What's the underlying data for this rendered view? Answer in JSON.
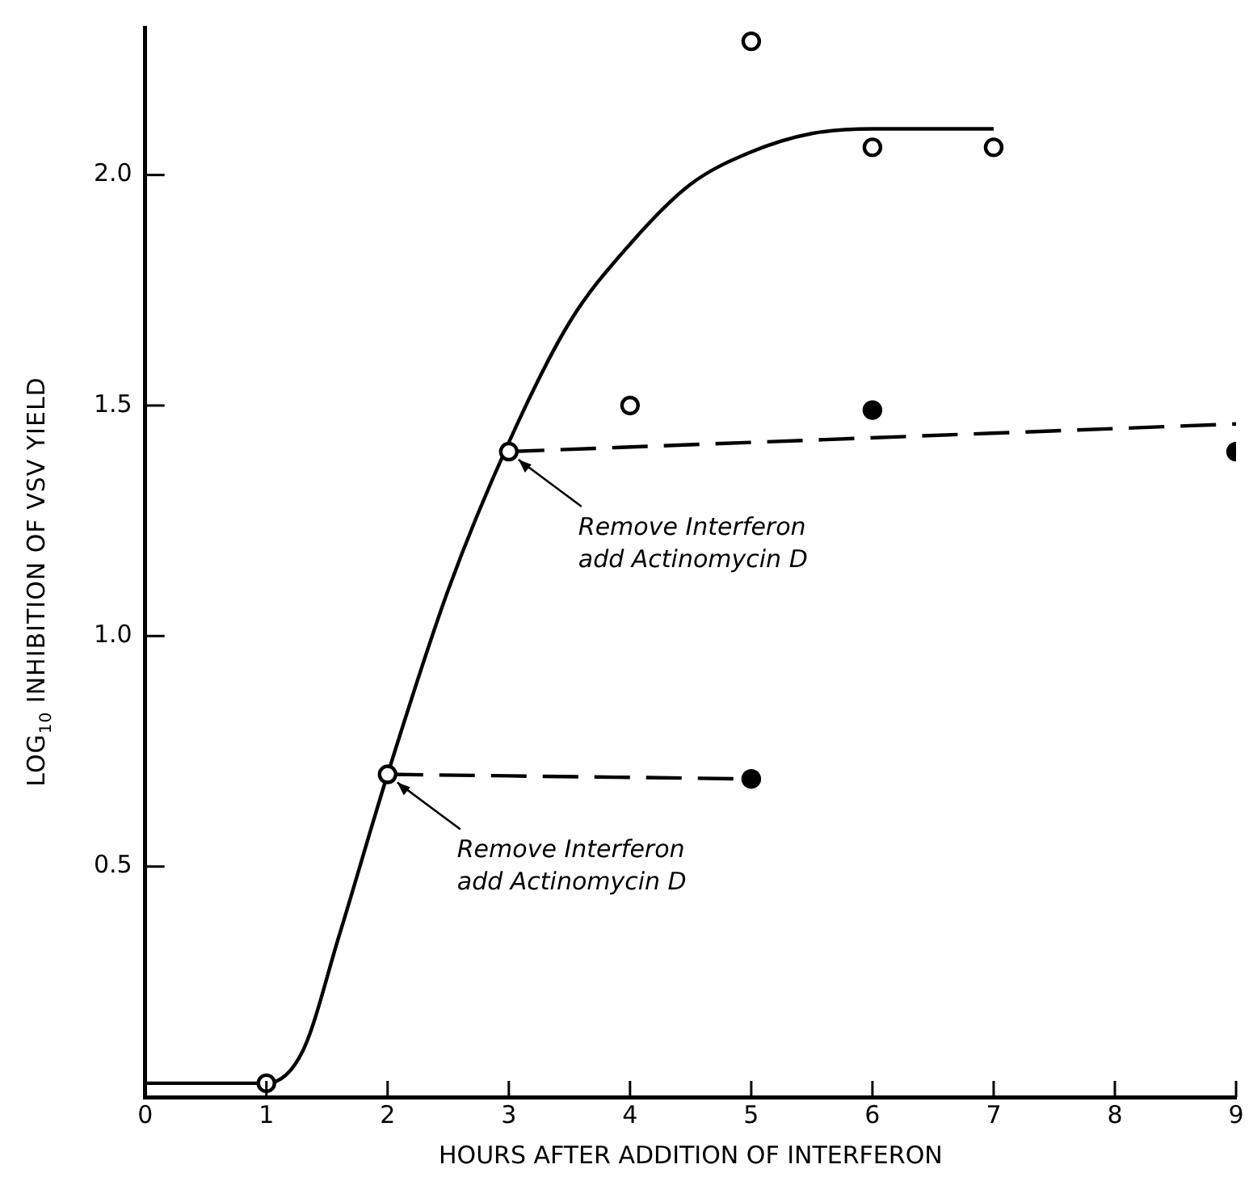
{
  "chart_data": {
    "type": "line",
    "xlabel": "HOURS AFTER ADDITION OF INTERFERON",
    "ylabel": "LOG$_{10}$ INHIBITION OF VSV YIELD",
    "xlim": [
      0,
      9
    ],
    "xticks": [
      0,
      1,
      2,
      3,
      4,
      5,
      6,
      7,
      8,
      9
    ],
    "ylim": [
      0,
      2.32
    ],
    "yticks": [
      {
        "value": 0.5,
        "label": "0.5"
      },
      {
        "value": 1,
        "label": "1.0"
      },
      {
        "value": 1.5,
        "label": "1.5"
      },
      {
        "value": 2,
        "label": "2.0"
      }
    ],
    "grid": false,
    "legend": false,
    "series": [
      {
        "color": "#000000",
        "line_style": "solid",
        "marker": "none",
        "x": [
          0,
          1,
          1.3,
          1.6,
          2,
          2.5,
          3,
          3.5,
          4,
          4.5,
          5,
          5.5,
          6,
          7
        ],
        "values": [
          0.03,
          0.03,
          0.1,
          0.35,
          0.7,
          1.1,
          1.42,
          1.68,
          1.85,
          1.98,
          2.05,
          2.09,
          2.1,
          2.1
        ]
      },
      {
        "color": "#000000",
        "line_style": "dashed",
        "marker": "none",
        "x": [
          2,
          5
        ],
        "values": [
          0.7,
          0.69
        ]
      },
      {
        "color": "#000000",
        "line_style": "dashed",
        "marker": "none",
        "x": [
          3,
          9
        ],
        "values": [
          1.4,
          1.46
        ]
      },
      {
        "type": "scatter",
        "color": "#000000",
        "marker": "circle-open",
        "x": [
          1,
          2,
          3,
          4,
          5,
          6,
          7
        ],
        "values": [
          0.03,
          0.7,
          1.4,
          1.5,
          2.29,
          2.06,
          2.06
        ]
      },
      {
        "type": "scatter",
        "color": "#000000",
        "marker": "circle",
        "x": [
          5,
          6,
          9
        ],
        "values": [
          0.69,
          1.49,
          1.4
        ]
      }
    ],
    "annotations": [
      {
        "text": "Remove Interferon\nadd Actinomycin D",
        "x": 3,
        "y": 1.4
      },
      {
        "text": "Remove Interferon\nadd Actinomycin D",
        "x": 2,
        "y": 0.7
      }
    ]
  }
}
